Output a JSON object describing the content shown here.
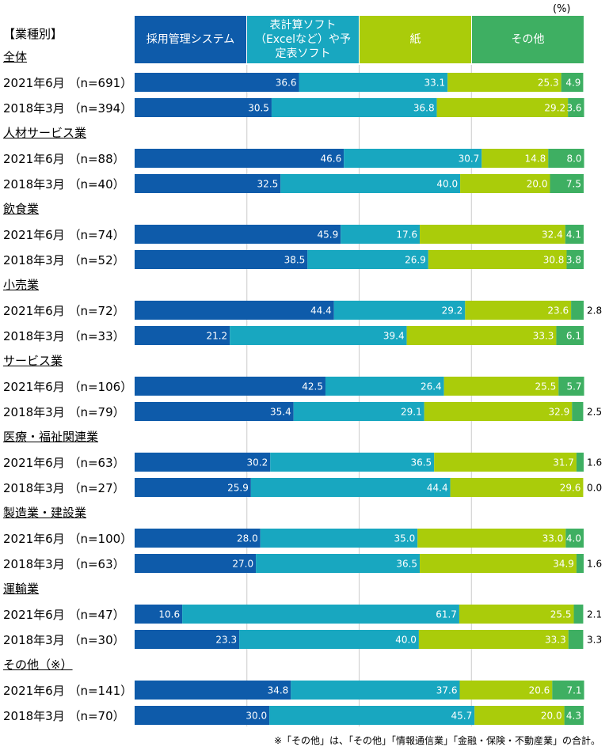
{
  "unit_label": "(%)",
  "axis_title": "【業種別】",
  "footnote": "※「その他」は、「その他」「情報通信業」「金融・保険・不動産業」の合計。",
  "colors": {
    "series1": "#0E5BAA",
    "series2": "#18A7C0",
    "series3": "#AACC0A",
    "series4": "#3EAF62"
  },
  "chart_data": {
    "type": "bar",
    "orientation": "horizontal",
    "stacked": true,
    "xlim": [
      0,
      100
    ],
    "unit": "%",
    "legend_position": "top",
    "series": [
      {
        "name": "採用管理システム"
      },
      {
        "name": "表計算ソフト（Excelなど）や予定表ソフト"
      },
      {
        "name": "紙"
      },
      {
        "name": "その他"
      }
    ],
    "groups": [
      {
        "name": "全体",
        "rows": [
          {
            "label": "2021年6月 （n=691）",
            "values": [
              36.6,
              33.1,
              25.3,
              4.9
            ]
          },
          {
            "label": "2018年3月 （n=394）",
            "values": [
              30.5,
              36.8,
              29.2,
              3.6
            ]
          }
        ]
      },
      {
        "name": "人材サービス業",
        "rows": [
          {
            "label": "2021年6月 （n=88）",
            "values": [
              46.6,
              30.7,
              14.8,
              8.0
            ]
          },
          {
            "label": "2018年3月 （n=40）",
            "values": [
              32.5,
              40.0,
              20.0,
              7.5
            ]
          }
        ]
      },
      {
        "name": "飲食業",
        "rows": [
          {
            "label": "2021年6月 （n=74）",
            "values": [
              45.9,
              17.6,
              32.4,
              4.1
            ]
          },
          {
            "label": "2018年3月 （n=52）",
            "values": [
              38.5,
              26.9,
              30.8,
              3.8
            ]
          }
        ]
      },
      {
        "name": "小売業",
        "rows": [
          {
            "label": "2021年6月 （n=72）",
            "values": [
              44.4,
              29.2,
              23.6,
              2.8
            ]
          },
          {
            "label": "2018年3月 （n=33）",
            "values": [
              21.2,
              39.4,
              33.3,
              6.1
            ]
          }
        ]
      },
      {
        "name": "サービス業",
        "rows": [
          {
            "label": "2021年6月 （n=106）",
            "values": [
              42.5,
              26.4,
              25.5,
              5.7
            ]
          },
          {
            "label": "2018年3月 （n=79）",
            "values": [
              35.4,
              29.1,
              32.9,
              2.5
            ]
          }
        ]
      },
      {
        "name": "医療・福祉関連業",
        "rows": [
          {
            "label": "2021年6月 （n=63）",
            "values": [
              30.2,
              36.5,
              31.7,
              1.6
            ]
          },
          {
            "label": "2018年3月 （n=27）",
            "values": [
              25.9,
              44.4,
              29.6,
              0.0
            ]
          }
        ]
      },
      {
        "name": "製造業・建設業",
        "rows": [
          {
            "label": "2021年6月 （n=100）",
            "values": [
              28.0,
              35.0,
              33.0,
              4.0
            ]
          },
          {
            "label": "2018年3月 （n=63）",
            "values": [
              27.0,
              36.5,
              34.9,
              1.6
            ]
          }
        ]
      },
      {
        "name": "運輸業",
        "rows": [
          {
            "label": "2021年6月 （n=47）",
            "values": [
              10.6,
              61.7,
              25.5,
              2.1
            ]
          },
          {
            "label": "2018年3月 （n=30）",
            "values": [
              23.3,
              40.0,
              33.3,
              3.3
            ]
          }
        ]
      },
      {
        "name": "その他（※）",
        "rows": [
          {
            "label": "2021年6月 （n=141）",
            "values": [
              34.8,
              37.6,
              20.6,
              7.1
            ]
          },
          {
            "label": "2018年3月 （n=70）",
            "values": [
              30.0,
              45.7,
              20.0,
              4.3
            ]
          }
        ]
      }
    ]
  }
}
